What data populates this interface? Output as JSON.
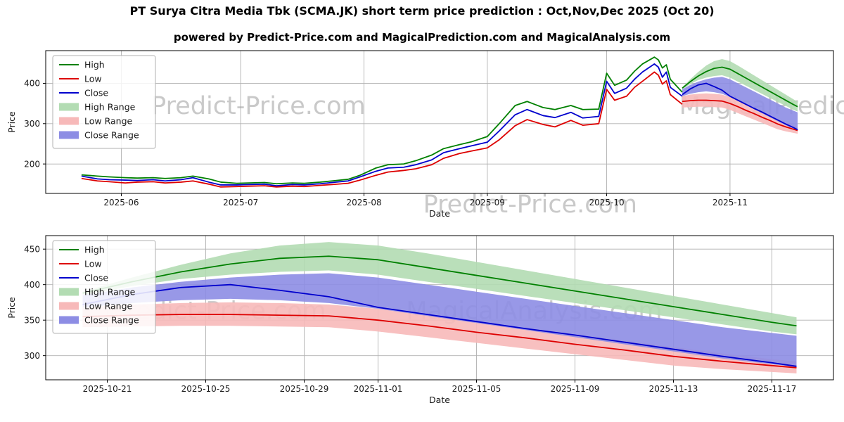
{
  "title": "PT Surya Citra Media Tbk (SCMA.JK) short term price prediction : Oct,Nov,Dec 2025 (Oct 20)",
  "subtitle": "powered by Predict-Price.com and MagicalPrediction.com and MagicalAnalysis.com",
  "colors": {
    "high": "#008000",
    "low": "#dd0000",
    "close": "#0000cd",
    "high_range": "#b3dcb3",
    "low_range": "#f7b9b9",
    "close_range": "#8d8de4",
    "grid": "#b0b0b0",
    "spine": "#000000",
    "watermark": "#9c9c9c"
  },
  "legend": [
    {
      "label": "High",
      "swatch": "line",
      "color_key": "high"
    },
    {
      "label": "Low",
      "swatch": "line",
      "color_key": "low"
    },
    {
      "label": "Close",
      "swatch": "line",
      "color_key": "close"
    },
    {
      "label": "High Range",
      "swatch": "patch",
      "color_key": "high_range"
    },
    {
      "label": "Low Range",
      "swatch": "patch",
      "color_key": "low_range"
    },
    {
      "label": "Close Range",
      "swatch": "patch",
      "color_key": "close_range"
    }
  ],
  "chart_data": {
    "type": "line",
    "title": "PT Surya Citra Media Tbk (SCMA.JK) short term price prediction : Oct,Nov,Dec 2025 (Oct 20)",
    "series_historical": {
      "dates": [
        "2025-05-22",
        "2025-05-26",
        "2025-05-29",
        "2025-06-02",
        "2025-06-05",
        "2025-06-09",
        "2025-06-12",
        "2025-06-16",
        "2025-06-19",
        "2025-06-23",
        "2025-06-26",
        "2025-06-30",
        "2025-07-03",
        "2025-07-07",
        "2025-07-10",
        "2025-07-14",
        "2025-07-17",
        "2025-07-21",
        "2025-07-24",
        "2025-07-28",
        "2025-07-31",
        "2025-08-04",
        "2025-08-07",
        "2025-08-11",
        "2025-08-14",
        "2025-08-18",
        "2025-08-21",
        "2025-08-25",
        "2025-08-28",
        "2025-09-01",
        "2025-09-04",
        "2025-09-08",
        "2025-09-11",
        "2025-09-15",
        "2025-09-18",
        "2025-09-22",
        "2025-09-25",
        "2025-09-29",
        "2025-10-01",
        "2025-10-03",
        "2025-10-06",
        "2025-10-08",
        "2025-10-10",
        "2025-10-13",
        "2025-10-14",
        "2025-10-15",
        "2025-10-16",
        "2025-10-17",
        "2025-10-20"
      ],
      "high": [
        173,
        170,
        168,
        166,
        165,
        166,
        164,
        166,
        170,
        163,
        155,
        152,
        153,
        154,
        151,
        153,
        152,
        155,
        158,
        162,
        172,
        190,
        198,
        200,
        208,
        222,
        238,
        248,
        255,
        268,
        300,
        345,
        355,
        340,
        335,
        345,
        335,
        336,
        425,
        395,
        408,
        430,
        448,
        465,
        458,
        438,
        446,
        410,
        378
      ],
      "low": [
        164,
        158,
        156,
        153,
        155,
        156,
        153,
        155,
        158,
        150,
        143,
        144,
        145,
        146,
        143,
        145,
        144,
        147,
        149,
        152,
        160,
        172,
        180,
        184,
        188,
        198,
        214,
        226,
        232,
        240,
        260,
        295,
        310,
        298,
        292,
        308,
        296,
        300,
        385,
        358,
        368,
        390,
        405,
        428,
        420,
        398,
        406,
        372,
        348
      ],
      "close": [
        170,
        163,
        161,
        160,
        159,
        161,
        158,
        161,
        166,
        155,
        148,
        148,
        149,
        150,
        146,
        149,
        148,
        151,
        154,
        158,
        168,
        182,
        190,
        192,
        198,
        210,
        228,
        238,
        245,
        254,
        282,
        322,
        335,
        320,
        315,
        328,
        314,
        318,
        405,
        375,
        388,
        410,
        428,
        448,
        440,
        415,
        428,
        390,
        368
      ]
    },
    "series_forecast": {
      "dates": [
        "2025-10-20",
        "2025-10-22",
        "2025-10-24",
        "2025-10-26",
        "2025-10-28",
        "2025-10-30",
        "2025-11-01",
        "2025-11-03",
        "2025-11-05",
        "2025-11-07",
        "2025-11-09",
        "2025-11-11",
        "2025-11-13",
        "2025-11-15",
        "2025-11-17",
        "2025-11-18"
      ],
      "high": [
        388,
        404,
        418,
        429,
        437,
        440,
        435,
        424,
        413,
        402,
        391,
        380,
        369,
        358,
        347,
        342
      ],
      "low": [
        355,
        357,
        358,
        358,
        357,
        356,
        350,
        342,
        333,
        325,
        316,
        308,
        299,
        292,
        286,
        283
      ],
      "close": [
        372,
        386,
        396,
        400,
        392,
        383,
        368,
        358,
        348,
        338,
        329,
        319,
        309,
        299,
        290,
        285
      ],
      "high_range": {
        "upper": [
          390,
          410,
          428,
          444,
          455,
          460,
          455,
          444,
          432,
          420,
          408,
          396,
          384,
          372,
          360,
          354
        ],
        "lower": [
          385,
          398,
          408,
          414,
          418,
          420,
          414,
          404,
          394,
          384,
          374,
          364,
          354,
          344,
          334,
          330
        ]
      },
      "close_range": {
        "upper": [
          385,
          396,
          404,
          410,
          414,
          416,
          410,
          400,
          390,
          380,
          370,
          360,
          350,
          340,
          332,
          328
        ],
        "lower": [
          368,
          374,
          378,
          380,
          378,
          374,
          366,
          356,
          346,
          336,
          326,
          316,
          306,
          296,
          288,
          284
        ]
      },
      "low_range": {
        "upper": [
          368,
          372,
          374,
          375,
          374,
          372,
          366,
          357,
          348,
          339,
          330,
          321,
          312,
          303,
          295,
          292
        ],
        "lower": [
          340,
          341,
          342,
          342,
          341,
          340,
          334,
          326,
          318,
          310,
          302,
          294,
          286,
          281,
          277,
          275
        ]
      }
    },
    "charts": [
      {
        "xlabel": "Date",
        "ylabel": "Price",
        "xlim": [
          "2025-05-13",
          "2025-11-27"
        ],
        "ylim": [
          127,
          481
        ],
        "yticks": [
          200,
          300,
          400
        ],
        "xticks": [
          {
            "pos": "2025-06-01",
            "label": "2025-06"
          },
          {
            "pos": "2025-07-01",
            "label": "2025-07"
          },
          {
            "pos": "2025-08-01",
            "label": "2025-08"
          },
          {
            "pos": "2025-09-01",
            "label": "2025-09"
          },
          {
            "pos": "2025-10-01",
            "label": "2025-10"
          },
          {
            "pos": "2025-11-01",
            "label": "2025-11"
          }
        ],
        "show_historical": true,
        "legend_position": "upper left",
        "grid": true,
        "watermarks": [
          {
            "text": "Predict-Price.com",
            "fx": 0.27,
            "fy": 0.385
          },
          {
            "text": "MagicalPrediction.com",
            "fx": 0.98,
            "fy": 0.385
          },
          {
            "text": "Predict-Price.com",
            "fx": 0.615,
            "fy": 1.075
          }
        ]
      },
      {
        "xlabel": "Date",
        "ylabel": "Price",
        "xlim": [
          "2025-10-18T12:00:00",
          "2025-11-19T12:00:00"
        ],
        "ylim": [
          266,
          469
        ],
        "yticks": [
          300,
          350,
          400,
          450
        ],
        "xticks": [
          {
            "pos": "2025-10-21",
            "label": "2025-10-21"
          },
          {
            "pos": "2025-10-25",
            "label": "2025-10-25"
          },
          {
            "pos": "2025-10-29",
            "label": "2025-10-29"
          },
          {
            "pos": "2025-11-01",
            "label": "2025-11-01"
          },
          {
            "pos": "2025-11-05",
            "label": "2025-11-05"
          },
          {
            "pos": "2025-11-09",
            "label": "2025-11-09"
          },
          {
            "pos": "2025-11-13",
            "label": "2025-11-13"
          },
          {
            "pos": "2025-11-17",
            "label": "2025-11-17"
          }
        ],
        "show_historical": false,
        "legend_position": "upper left",
        "grid": true,
        "watermarks": [
          {
            "text": "Predict-Price.com",
            "fx": 0.22,
            "fy": 0.52
          },
          {
            "text": "MagicalAnalysis.com",
            "fx": 0.62,
            "fy": 0.52
          }
        ]
      }
    ]
  }
}
